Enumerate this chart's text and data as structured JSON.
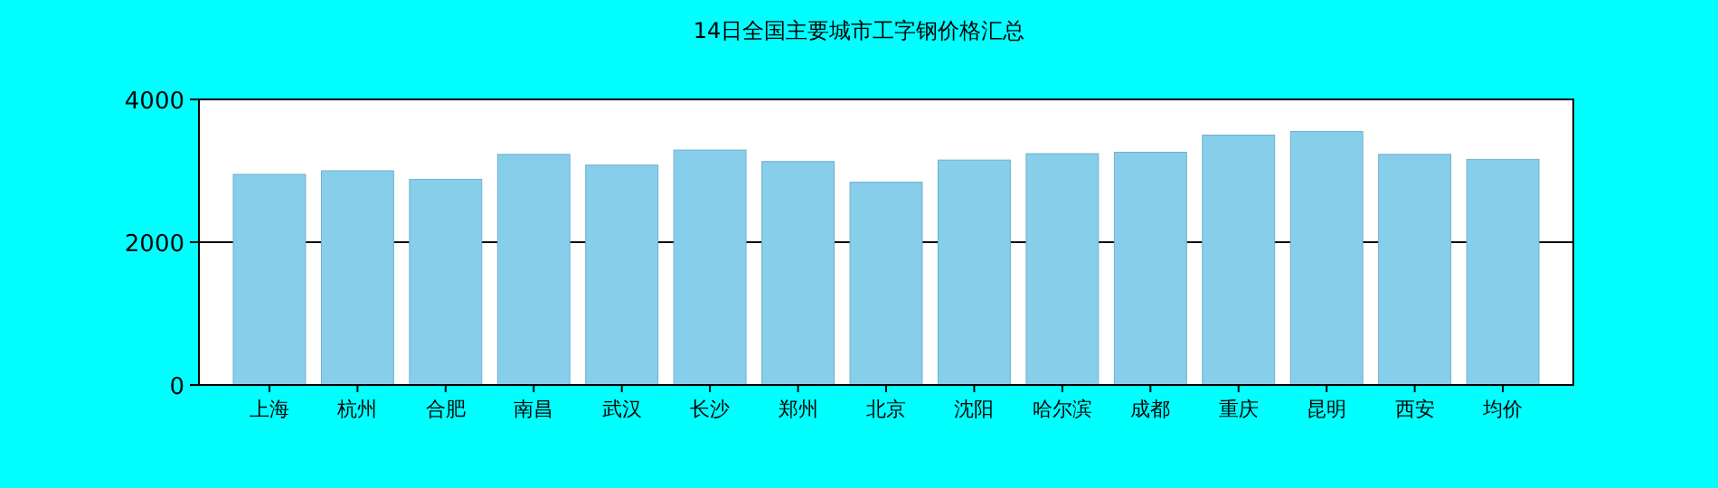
{
  "chart_data": {
    "type": "bar",
    "title": "14日全国主要城市工字钢价格汇总",
    "categories": [
      "上海",
      "杭州",
      "合肥",
      "南昌",
      "武汉",
      "长沙",
      "郑州",
      "北京",
      "沈阳",
      "哈尔滨",
      "成都",
      "重庆",
      "昆明",
      "西安",
      "均价"
    ],
    "values": [
      2950,
      3000,
      2880,
      3230,
      3080,
      3290,
      3130,
      2840,
      3150,
      3240,
      3260,
      3500,
      3550,
      3230,
      3160
    ],
    "color": "#87ceeb",
    "ylim": [
      0,
      4000
    ],
    "yticks": [
      0,
      2000,
      4000
    ],
    "grid": "y"
  }
}
